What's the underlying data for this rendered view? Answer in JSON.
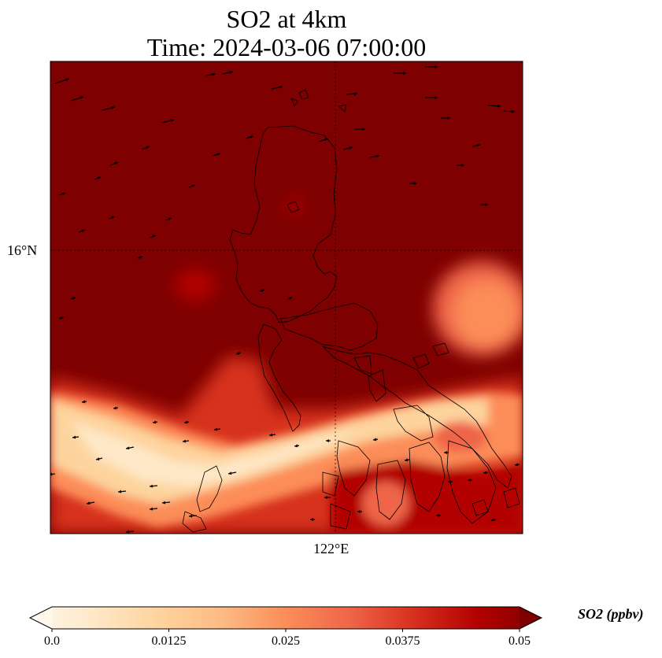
{
  "title": {
    "line1": "SO2 at 4km",
    "line2": "Time: 2024-03-06 07:00:00"
  },
  "axes": {
    "lat_tick": "16°N",
    "lon_tick": "122°E"
  },
  "colorbar": {
    "label": "SO2 (ppbv)",
    "ticks": [
      "0.0",
      "0.0125",
      "0.025",
      "0.0375",
      "0.05"
    ],
    "colormap": "OrRd",
    "colors": [
      "#fff7ec",
      "#fee8c8",
      "#fdd49e",
      "#fdbb84",
      "#fc8d59",
      "#ef6548",
      "#d7301f",
      "#b30000",
      "#7f0000"
    ],
    "extend": "both"
  },
  "map": {
    "background_color": "#7f0000",
    "coastline_color": "#000000",
    "gridline_style": "dotted",
    "features": [
      "coastlines",
      "wind-vectors",
      "so2-field"
    ]
  }
}
